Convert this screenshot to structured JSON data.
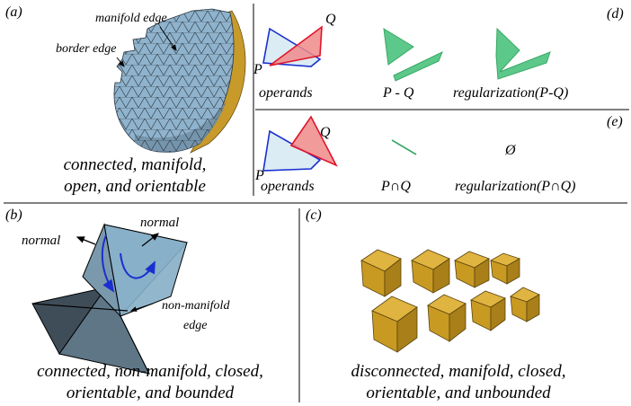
{
  "panels": {
    "a": {
      "tag": "(a)",
      "labels": {
        "manifold_edge": "manifold edge",
        "border_edge": "border edge"
      },
      "caption": [
        "connected, manifold,",
        "open, and orientable"
      ]
    },
    "b": {
      "tag": "(b)",
      "labels": {
        "normal_left": "normal",
        "normal_right": "normal",
        "nonmanifold_line1": "non-manifold",
        "nonmanifold_line2": "edge"
      },
      "caption": [
        "connected, non-manifold, closed,",
        "orientable, and bounded"
      ]
    },
    "c": {
      "tag": "(c)",
      "caption": [
        "disconnected, manifold, closed,",
        "orientable, and unbounded"
      ]
    },
    "d": {
      "tag": "(d)",
      "point_p": "P",
      "point_q": "Q",
      "labels": {
        "operands": "operands",
        "difference": "P - Q",
        "regularization": "regularization(P-Q)"
      }
    },
    "e": {
      "tag": "(e)",
      "point_p": "P",
      "point_q": "Q",
      "labels": {
        "operands": "operands",
        "intersection": "P∩Q",
        "empty_set": "Ø",
        "regularization": "regularization(P∩Q)"
      }
    }
  },
  "colors": {
    "mesh_face": "#8fb3cc",
    "mesh_rim": "#c79a2a",
    "polygon_p_fill": "#dcecf4",
    "polygon_p_edge": "#1a2fd0",
    "polygon_q_fill": "#f08a8a",
    "polygon_q_edge": "#e0152a",
    "result_green": "#5cc98a",
    "cube_gold": "#c89a22",
    "arrow_blue": "#1a2fd0"
  }
}
